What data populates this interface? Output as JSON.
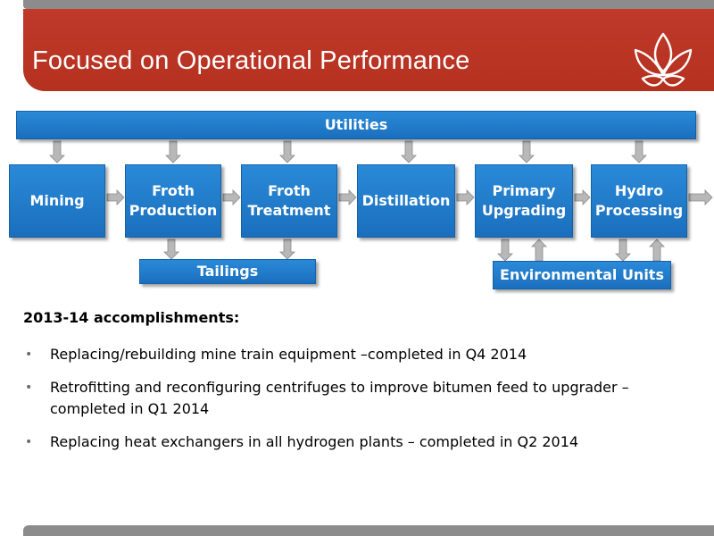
{
  "header": {
    "title": "Focused on Operational Performance"
  },
  "diagram": {
    "utilities": "Utilities",
    "stages": [
      {
        "label": "Mining"
      },
      {
        "label": "Froth\nProduction"
      },
      {
        "label": "Froth\nTreatment"
      },
      {
        "label": "Distillation"
      },
      {
        "label": "Primary\nUpgrading"
      },
      {
        "label": "Hydro\nProcessing"
      }
    ],
    "tailings": "Tailings",
    "environmental": "Environmental Units"
  },
  "accomplishments": {
    "heading": "2013-14 accomplishments:",
    "items": [
      "Replacing/rebuilding mine train equipment –completed in Q4 2014",
      "Retrofitting and reconfiguring centrifuges to improve bitumen feed to upgrader – completed in Q1 2014",
      "Replacing heat exchangers in all hydrogen plants – completed in Q2 2014"
    ]
  },
  "colors": {
    "title_band": "#c0392b",
    "box_blue": "#1a6fbd",
    "arrow_gray": "#b8b8b8"
  },
  "icons": {
    "logo": "flame-petal-logo",
    "bullet": "bullet-dot"
  }
}
